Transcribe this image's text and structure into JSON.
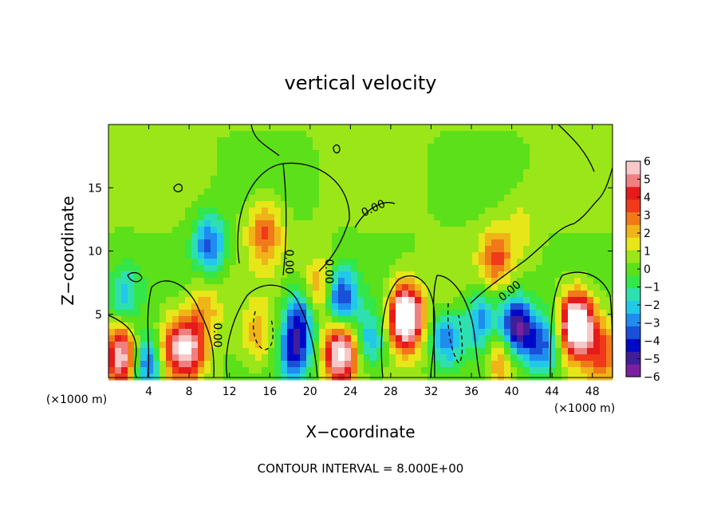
{
  "chart_data": {
    "type": "heatmap",
    "title": "vertical velocity",
    "xlabel": "X−coordinate",
    "ylabel": "Z−coordinate",
    "x_unit_label_left": "(×1000 m)",
    "x_unit_label_right": "(×1000 m)",
    "xlim": [
      0,
      50
    ],
    "ylim": [
      0,
      20
    ],
    "x_ticks": [
      4,
      8,
      12,
      16,
      20,
      24,
      28,
      32,
      36,
      40,
      44,
      48
    ],
    "y_ticks": [
      5,
      10,
      15
    ],
    "colorbar": {
      "min": -6,
      "max": 6,
      "ticks": [
        6,
        5,
        4,
        3,
        2,
        1,
        0,
        -1,
        -2,
        -3,
        -4,
        -5,
        -6
      ],
      "tick_labels": [
        "6",
        "5",
        "4",
        "3",
        "2",
        "1",
        "0",
        "−1",
        "−2",
        "−3",
        "−4",
        "−5",
        "−6"
      ],
      "colors": [
        "#7a1fa2",
        "#3f1f99",
        "#0008c8",
        "#1a4fd8",
        "#1f8cf0",
        "#22c8e8",
        "#2ee0b0",
        "#33e64a",
        "#5ce019",
        "#9ae619",
        "#e6e619",
        "#f0b419",
        "#f07a19",
        "#f03a19",
        "#e61a1a",
        "#f08080",
        "#f8c8c8"
      ]
    },
    "contour_label": "0.00",
    "footer": "CONTOUR INTERVAL = 8.000E+00",
    "features": [
      {
        "x": 1.3,
        "z": 1.7,
        "w": 6.0
      },
      {
        "x": 3.8,
        "z": 1.1,
        "w": -4.5
      },
      {
        "x": 6.3,
        "z": 2.2,
        "w": 3.0
      },
      {
        "x": 8.0,
        "z": 2.3,
        "w": 5.0
      },
      {
        "x": 9.5,
        "z": 5.5,
        "w": 2.0
      },
      {
        "x": 10.0,
        "z": 10.5,
        "w": -4.0
      },
      {
        "x": 14.8,
        "z": 3.4,
        "w": -7.0
      },
      {
        "x": 14.8,
        "z": 3.4,
        "w": 9.0
      },
      {
        "x": 15.5,
        "z": 11.5,
        "w": 3.0
      },
      {
        "x": 19.0,
        "z": 5.0,
        "w": -4.0
      },
      {
        "x": 18.5,
        "z": 2.0,
        "w": -4.5
      },
      {
        "x": 21.0,
        "z": 6.8,
        "w": 3.0
      },
      {
        "x": 23.0,
        "z": 6.2,
        "w": -5.0
      },
      {
        "x": 23.0,
        "z": 2.0,
        "w": 7.0
      },
      {
        "x": 26.0,
        "z": 3.0,
        "w": -3.0
      },
      {
        "x": 29.5,
        "z": 4.8,
        "w": 9.0
      },
      {
        "x": 33.5,
        "z": 3.8,
        "w": -9.0
      },
      {
        "x": 33.5,
        "z": 4.3,
        "w": 6.0
      },
      {
        "x": 37.0,
        "z": 4.5,
        "w": -3.5
      },
      {
        "x": 38.5,
        "z": 9.5,
        "w": 3.0
      },
      {
        "x": 40.5,
        "z": 4.0,
        "w": -6.5
      },
      {
        "x": 39.0,
        "z": 1.5,
        "w": 3.0
      },
      {
        "x": 43.0,
        "z": 2.5,
        "w": -4.0
      },
      {
        "x": 46.5,
        "z": 4.2,
        "w": 9.0
      },
      {
        "x": 49.0,
        "z": 2.0,
        "w": 3.0
      },
      {
        "x": 1.5,
        "z": 6.5,
        "w": -2.5
      },
      {
        "x": 41.0,
        "z": 12.0,
        "w": 1.0
      }
    ]
  }
}
